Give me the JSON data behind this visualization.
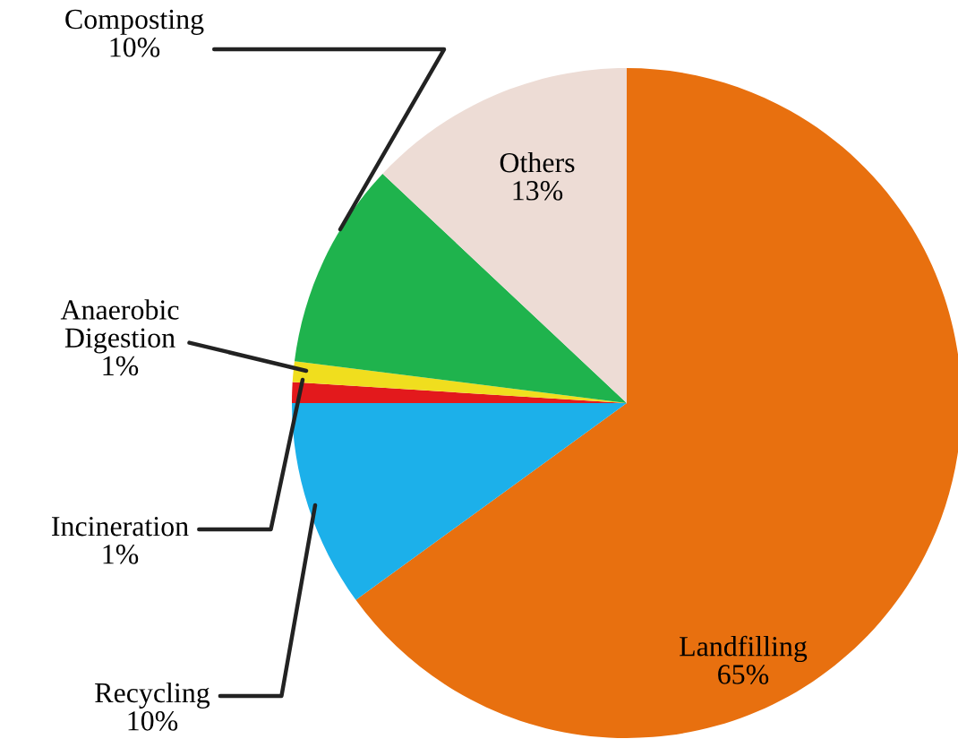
{
  "chart_data": {
    "type": "pie",
    "categories": [
      "Landfilling",
      "Recycling",
      "Incineration",
      "Anaerobic Digestion",
      "Composting",
      "Others"
    ],
    "values": [
      65,
      10,
      1,
      1,
      10,
      13
    ],
    "value_labels": [
      "65%",
      "10%",
      "1%",
      "1%",
      "10%",
      "13%"
    ],
    "colors": [
      "#e8700f",
      "#1cb0ea",
      "#e3191c",
      "#f0de1e",
      "#1fb34d",
      "#eddcd5"
    ]
  }
}
